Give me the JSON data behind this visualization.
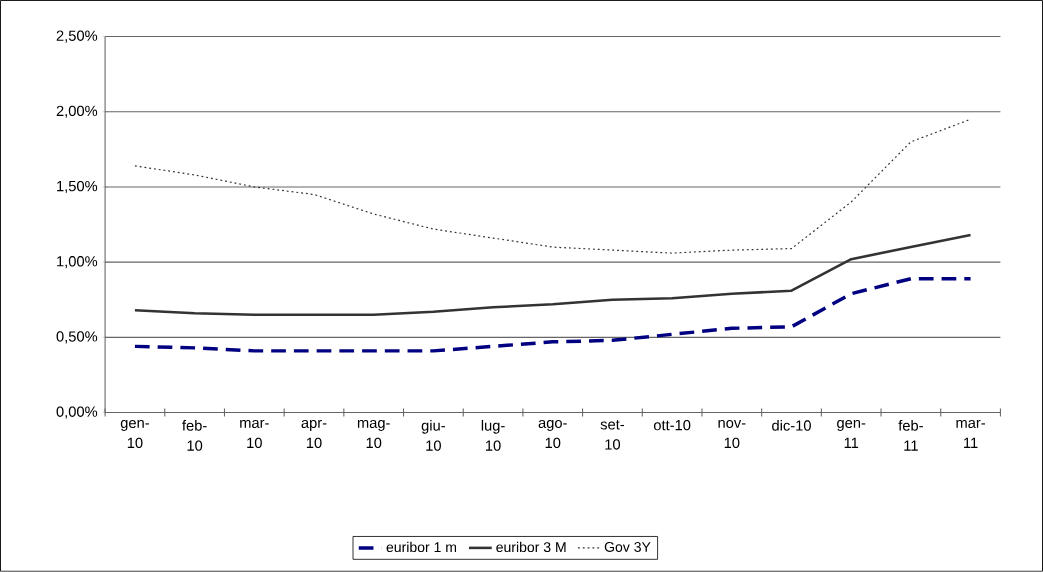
{
  "chart_data": {
    "type": "line",
    "categories": [
      "gen-10",
      "feb-10",
      "mar-10",
      "apr-10",
      "mag-10",
      "giu-10",
      "lug-10",
      "ago-10",
      "set-10",
      "ott-10",
      "nov-10",
      "dic-10",
      "gen-11",
      "feb-11",
      "mar-11"
    ],
    "series": [
      {
        "name": "euribor 1 m",
        "color": "#000080",
        "line_style": "dashed",
        "values": [
          0.44,
          0.43,
          0.41,
          0.41,
          0.41,
          0.41,
          0.44,
          0.47,
          0.48,
          0.52,
          0.56,
          0.57,
          0.79,
          0.89,
          0.89
        ]
      },
      {
        "name": "euribor 3 M",
        "color": "#333333",
        "line_style": "solid",
        "values": [
          0.68,
          0.66,
          0.65,
          0.65,
          0.65,
          0.67,
          0.7,
          0.72,
          0.75,
          0.76,
          0.79,
          0.81,
          1.02,
          1.1,
          1.18
        ]
      },
      {
        "name": "Gov 3Y",
        "color": "#333333",
        "line_style": "dotted",
        "values": [
          1.64,
          1.58,
          1.5,
          1.45,
          1.32,
          1.22,
          1.16,
          1.1,
          1.08,
          1.06,
          1.08,
          1.09,
          1.4,
          1.8,
          1.95
        ]
      }
    ],
    "ylim": [
      0,
      2.5
    ],
    "yticks": [
      {
        "value": 0,
        "label": "0,00%"
      },
      {
        "value": 0.5,
        "label": "0,50%"
      },
      {
        "value": 1.0,
        "label": "1,00%"
      },
      {
        "value": 1.5,
        "label": "1,50%"
      },
      {
        "value": 2.0,
        "label": "2,00%"
      },
      {
        "value": 2.5,
        "label": "2,50%"
      }
    ],
    "grid": "y",
    "legend": "bottom",
    "marker": "none"
  }
}
